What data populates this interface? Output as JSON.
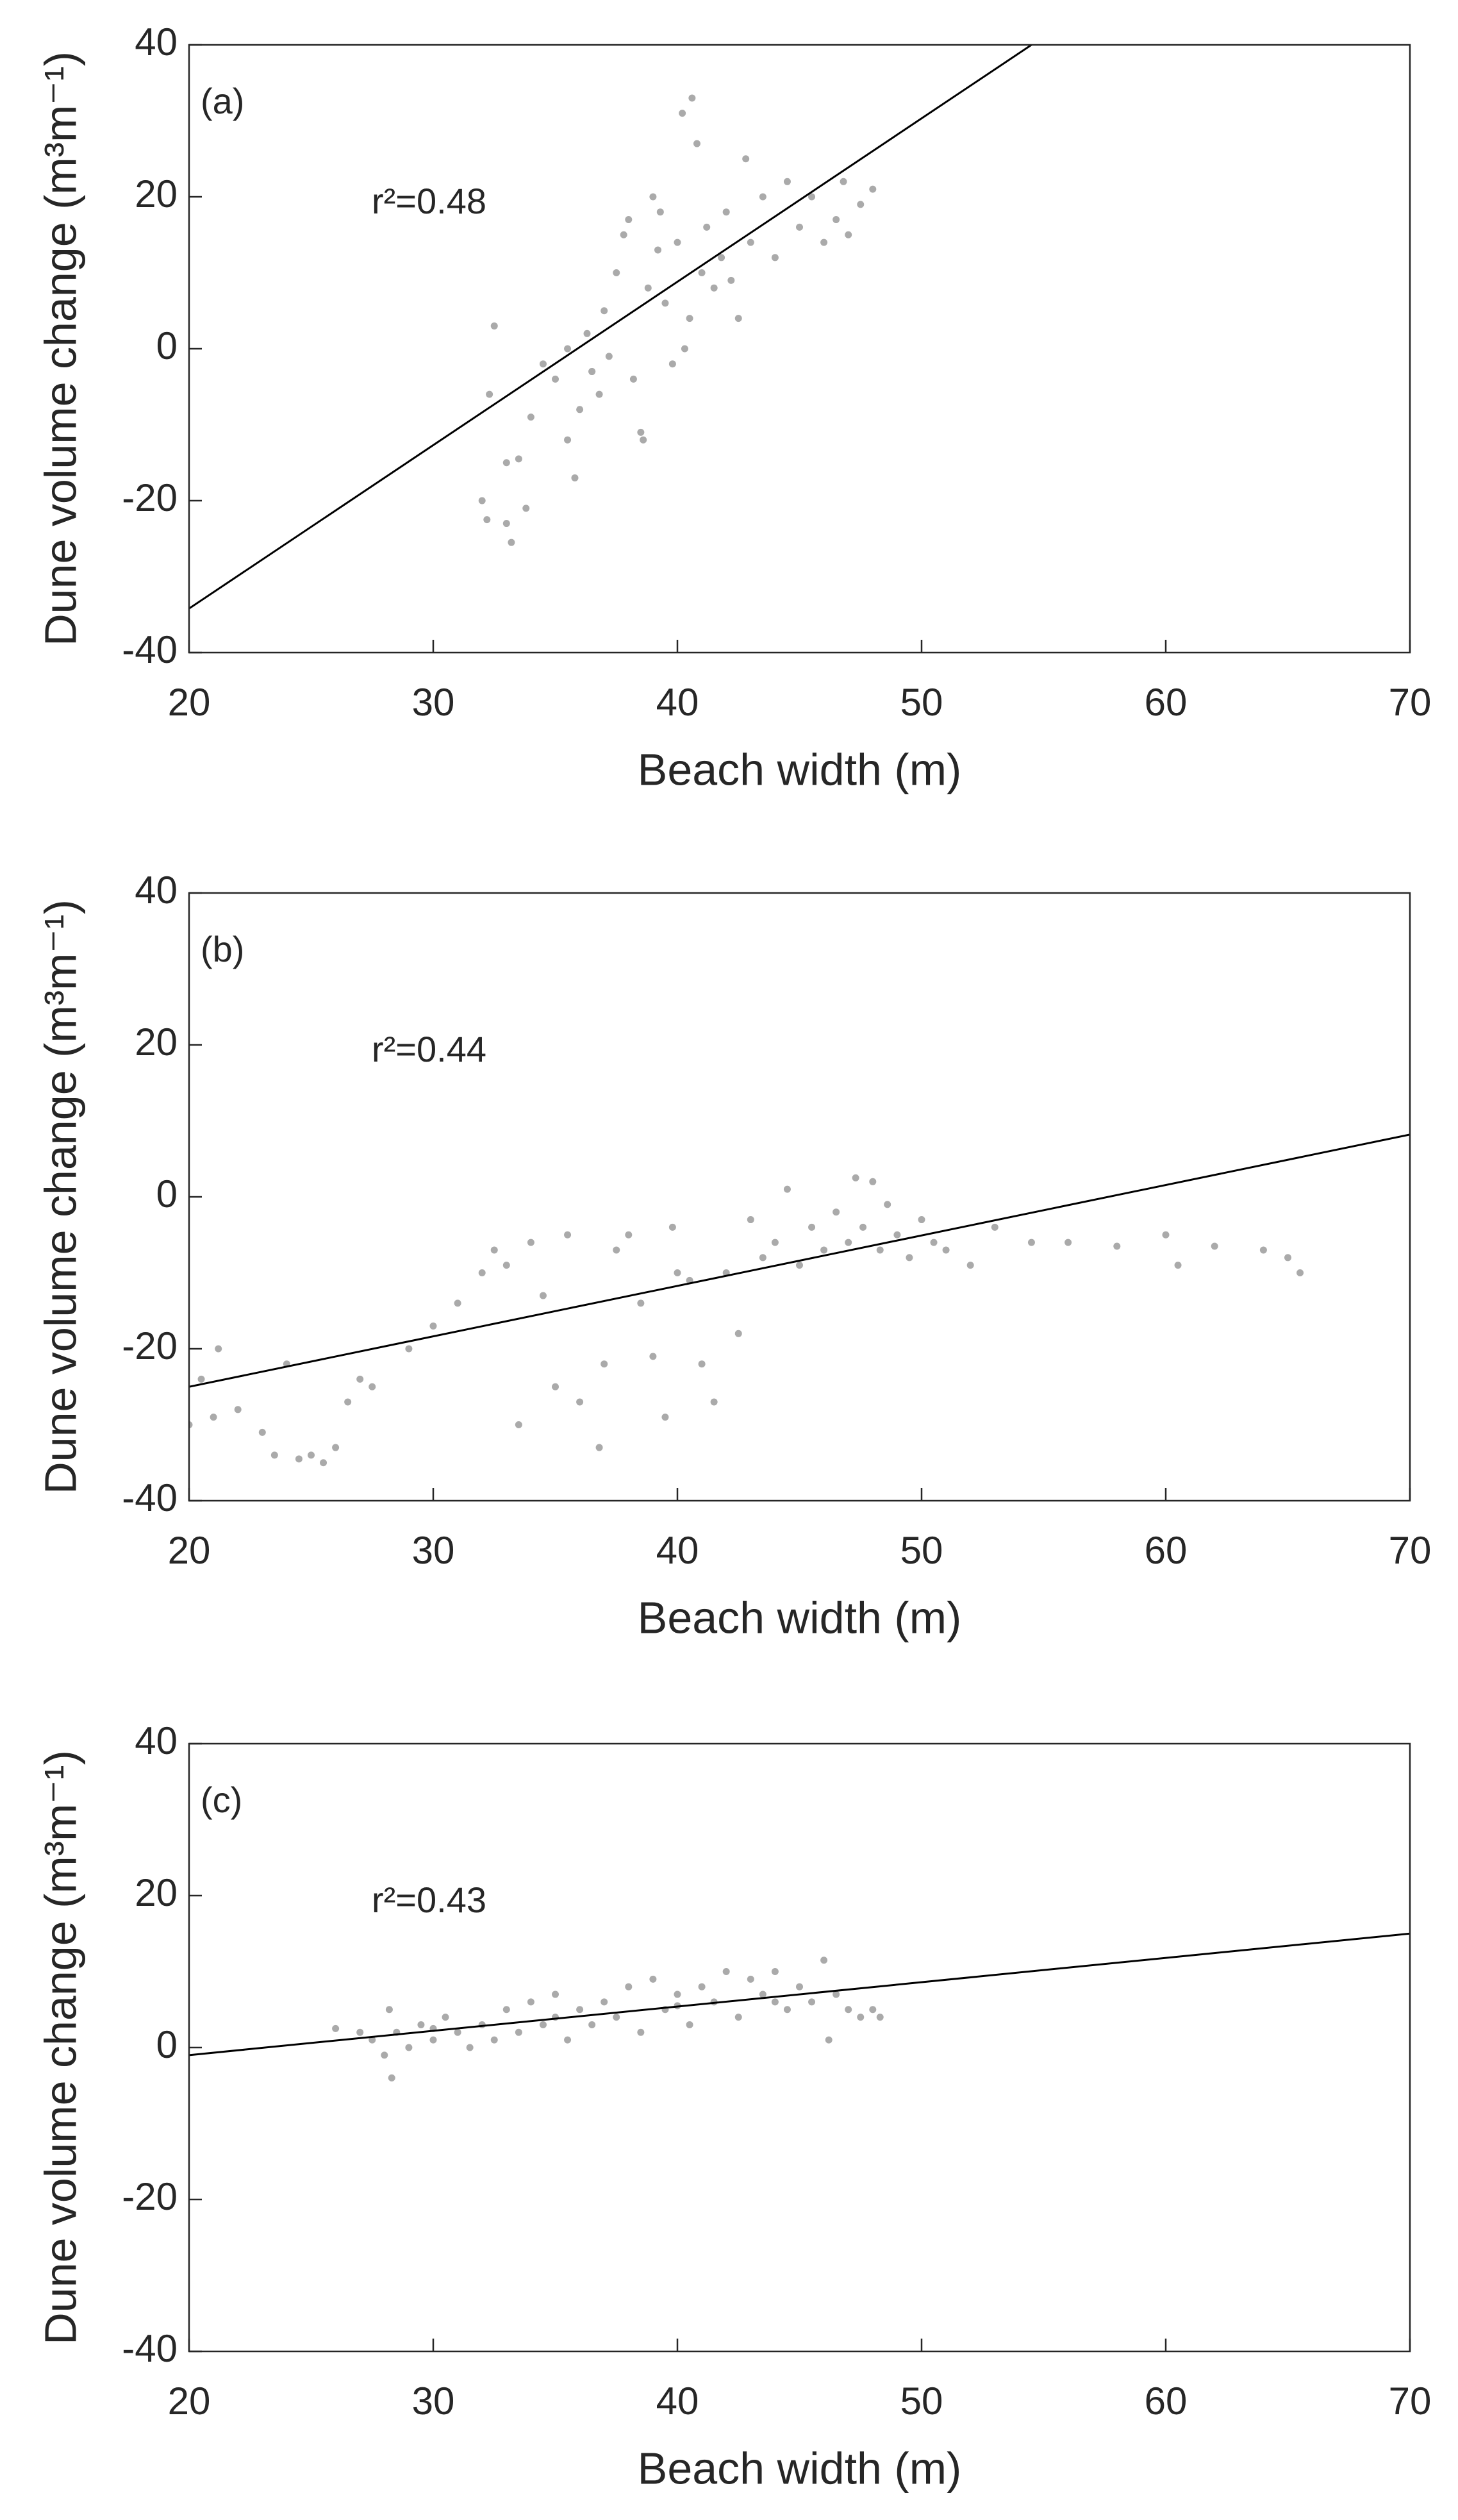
{
  "chart_data": [
    {
      "type": "scatter",
      "panel_label": "(a)",
      "annotation": "r²=0.48",
      "xlabel": "Beach width (m)",
      "ylabel": "Dune volume change (m³m⁻¹)",
      "xlim": [
        20,
        70
      ],
      "ylim": [
        -40,
        40
      ],
      "xticks": [
        20,
        30,
        40,
        50,
        60,
        70
      ],
      "yticks": [
        -40,
        -20,
        0,
        20,
        40
      ],
      "color": "#aaaaaa",
      "line_color": "#000000",
      "x": [
        32,
        32.2,
        32.5,
        32.3,
        33,
        33.2,
        33,
        33.5,
        33.8,
        34,
        34.5,
        35,
        35.5,
        35.5,
        35.8,
        36,
        36.3,
        36.5,
        36.8,
        37,
        37.2,
        37.5,
        37.8,
        38,
        38.2,
        38.5,
        38.6,
        38.8,
        39,
        39.2,
        39.5,
        39.8,
        40,
        40.2,
        40.5,
        40.6,
        40.8,
        41,
        41.2,
        41.5,
        41.8,
        42,
        42.2,
        42.5,
        42.8,
        43,
        43.5,
        44,
        44.5,
        45,
        45.5,
        46,
        46.5,
        46.8,
        47,
        47.5,
        48,
        36.5,
        39.3,
        40.3
      ],
      "values": [
        -20,
        -22.5,
        3,
        -6,
        -15,
        -25.5,
        -23,
        -14.5,
        -21,
        -9,
        -2,
        -4,
        0,
        -12,
        -17,
        -8,
        2,
        -3,
        -6,
        5,
        -1,
        10,
        15,
        17,
        -4,
        -11,
        -12,
        8,
        20,
        13,
        6,
        -2,
        14,
        31,
        4,
        33,
        27,
        10,
        16,
        8,
        12,
        18,
        9,
        4,
        25,
        14,
        20,
        12,
        22,
        16,
        20,
        14,
        17,
        22,
        15,
        19,
        21,
        -3,
        18,
        0
      ],
      "trend_line": {
        "x": [
          20,
          54.5
        ],
        "y": [
          -34.2,
          40
        ]
      }
    },
    {
      "type": "scatter",
      "panel_label": "(b)",
      "annotation": "r²=0.44",
      "xlabel": "Beach width (m)",
      "ylabel": "Dune volume change (m³m⁻¹)",
      "xlim": [
        20,
        70
      ],
      "ylim": [
        -40,
        40
      ],
      "xticks": [
        20,
        30,
        40,
        50,
        60,
        70
      ],
      "yticks": [
        -40,
        -20,
        0,
        20,
        40
      ],
      "color": "#aaaaaa",
      "line_color": "#000000",
      "x": [
        20,
        20.5,
        21,
        21.2,
        22,
        23,
        23.5,
        24,
        24.5,
        25,
        25.5,
        26,
        26.5,
        27,
        27.5,
        29,
        30,
        31,
        32,
        32.5,
        33,
        33.5,
        34,
        34.5,
        35,
        35.5,
        36,
        36.8,
        37,
        37.5,
        38,
        38.5,
        39,
        39.5,
        39.8,
        40,
        40.5,
        41,
        41.5,
        42,
        42.5,
        43,
        43.5,
        44,
        44.5,
        45,
        45.5,
        46,
        46.5,
        47,
        47.3,
        47.6,
        48,
        48.3,
        48.6,
        49,
        49.5,
        50,
        50.5,
        51,
        52,
        53,
        54.5,
        56,
        58,
        60,
        60.5,
        62,
        64,
        65,
        65.5
      ],
      "values": [
        -30,
        -24,
        -29,
        -20,
        -28,
        -31,
        -34,
        -22,
        -34.5,
        -34,
        -35,
        -33,
        -27,
        -24,
        -25,
        -20,
        -17,
        -14,
        -10,
        -7,
        -9,
        -30,
        -6,
        -13,
        -25,
        -5,
        -27,
        -33,
        -22,
        -7,
        -5,
        -14,
        -21,
        -29,
        -4,
        -10,
        -11,
        -22,
        -27,
        -10,
        -18,
        -3,
        -8,
        -6,
        1,
        -9,
        -4,
        -7,
        -2,
        -6,
        2.5,
        -4,
        2,
        -7,
        -1,
        -5,
        -8,
        -3,
        -6,
        -7,
        -9,
        -4,
        -6,
        -6,
        -6.5,
        -5,
        -9,
        -6.5,
        -7,
        -8,
        -10
      ],
      "trend_line": {
        "x": [
          20,
          70
        ],
        "y": [
          -25,
          8.2
        ]
      }
    },
    {
      "type": "scatter",
      "panel_label": "(c)",
      "annotation": "r²=0.43",
      "xlabel": "Beach width (m)",
      "ylabel": "Dune volume change (m³m⁻¹)",
      "xlim": [
        20,
        70
      ],
      "ylim": [
        -40,
        40
      ],
      "xticks": [
        20,
        30,
        40,
        50,
        60,
        70
      ],
      "yticks": [
        -40,
        -20,
        0,
        20,
        40
      ],
      "color": "#aaaaaa",
      "line_color": "#000000",
      "x": [
        26,
        27,
        27.5,
        28,
        28.2,
        28.3,
        28.5,
        29,
        29.5,
        30,
        30.5,
        31,
        31.5,
        32,
        32.5,
        33,
        33.5,
        34,
        34.5,
        35,
        35.5,
        36,
        36.5,
        37,
        37.5,
        38,
        38.5,
        39,
        39.5,
        40,
        40.5,
        41,
        41.5,
        42,
        42.5,
        43,
        43.5,
        44,
        44.5,
        45,
        45.5,
        46,
        46.2,
        46.5,
        47,
        47.5,
        48,
        48.3,
        30,
        35,
        40,
        44
      ],
      "values": [
        2.5,
        2,
        1,
        -1,
        5,
        -4,
        2,
        0,
        3,
        1,
        4,
        2,
        0,
        3,
        1,
        5,
        2,
        6,
        3,
        7,
        1,
        5,
        3,
        6,
        4,
        8,
        2,
        9,
        5,
        7,
        3,
        8,
        6,
        10,
        4,
        9,
        7,
        10,
        5,
        8,
        6,
        11.5,
        1,
        7,
        5,
        4,
        5,
        4,
        2.5,
        4,
        5.5,
        6
      ],
      "trend_line": {
        "x": [
          20,
          70
        ],
        "y": [
          -1,
          15
        ]
      }
    }
  ]
}
